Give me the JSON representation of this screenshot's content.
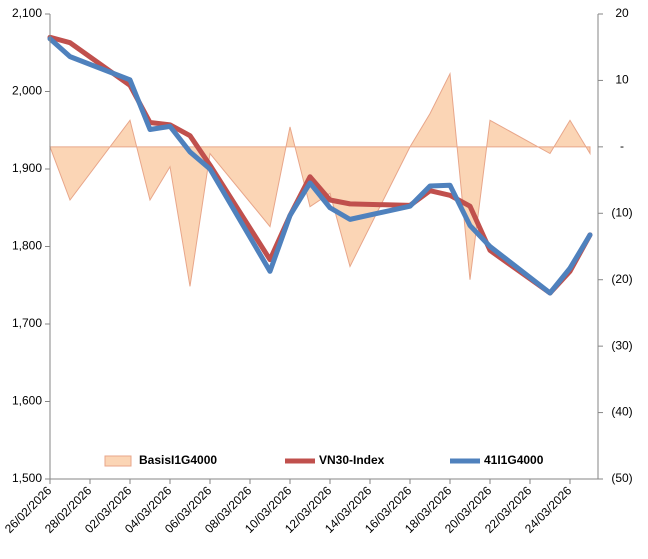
{
  "chart_data": {
    "type": "line",
    "x": [
      "26/02/2026",
      "27/02/2026",
      "02/03/2026",
      "03/03/2026",
      "04/03/2026",
      "05/03/2026",
      "06/03/2026",
      "09/03/2026",
      "10/03/2026",
      "11/03/2026",
      "12/03/2026",
      "13/03/2026",
      "16/03/2026",
      "17/03/2026",
      "18/03/2026",
      "19/03/2026",
      "20/03/2026",
      "23/03/2026",
      "24/03/2026",
      "25/03/2026"
    ],
    "xlim": [
      "26/02/2026",
      "25/03/2026"
    ],
    "xticks": [
      "26/02/2026",
      "28/02/2026",
      "02/03/2026",
      "04/03/2026",
      "06/03/2026",
      "08/03/2026",
      "10/03/2026",
      "12/03/2026",
      "14/03/2026",
      "16/03/2026",
      "18/03/2026",
      "20/03/2026",
      "22/03/2026",
      "24/03/2026"
    ],
    "ylim": [
      1500,
      2100
    ],
    "yticks": [
      {
        "value": 1500,
        "label": "1,500"
      },
      {
        "value": 1600,
        "label": "1,600"
      },
      {
        "value": 1700,
        "label": "1,700"
      },
      {
        "value": 1800,
        "label": "1,800"
      },
      {
        "value": 1900,
        "label": "1,900"
      },
      {
        "value": 2000,
        "label": "2,000"
      },
      {
        "value": 2100,
        "label": "2,100"
      }
    ],
    "y2lim": [
      -50,
      20
    ],
    "y2ticks": [
      {
        "value": -50,
        "label": "(50)"
      },
      {
        "value": -40,
        "label": "(40)"
      },
      {
        "value": -30,
        "label": "(30)"
      },
      {
        "value": -20,
        "label": "(20)"
      },
      {
        "value": -10,
        "label": "(10)"
      },
      {
        "value": 0,
        "label": "-"
      },
      10,
      20
    ],
    "series": [
      {
        "name": "BasisI1G4000",
        "type": "area",
        "axis": "y2",
        "color": "#fbd5b5",
        "values": [
          0,
          -8,
          4,
          -8,
          -3,
          -21,
          -1,
          -12,
          3,
          -9,
          -7,
          -18,
          0,
          5,
          11,
          -20,
          4,
          -1,
          4,
          -1
        ]
      },
      {
        "name": "VN30-Index",
        "color": "#c0504d",
        "values": [
          2070,
          2063,
          2008,
          1960,
          1957,
          1943,
          1905,
          1783,
          1840,
          1890,
          1860,
          1855,
          1853,
          1872,
          1866,
          1852,
          1795,
          1740,
          1768,
          1815
        ]
      },
      {
        "name": "41I1G4000",
        "color": "#4f81bd",
        "values": [
          2068,
          2045,
          2015,
          1951,
          1955,
          1922,
          1900,
          1768,
          1840,
          1882,
          1850,
          1835,
          1852,
          1878,
          1879,
          1827,
          1800,
          1740,
          1772,
          1815
        ]
      }
    ]
  }
}
